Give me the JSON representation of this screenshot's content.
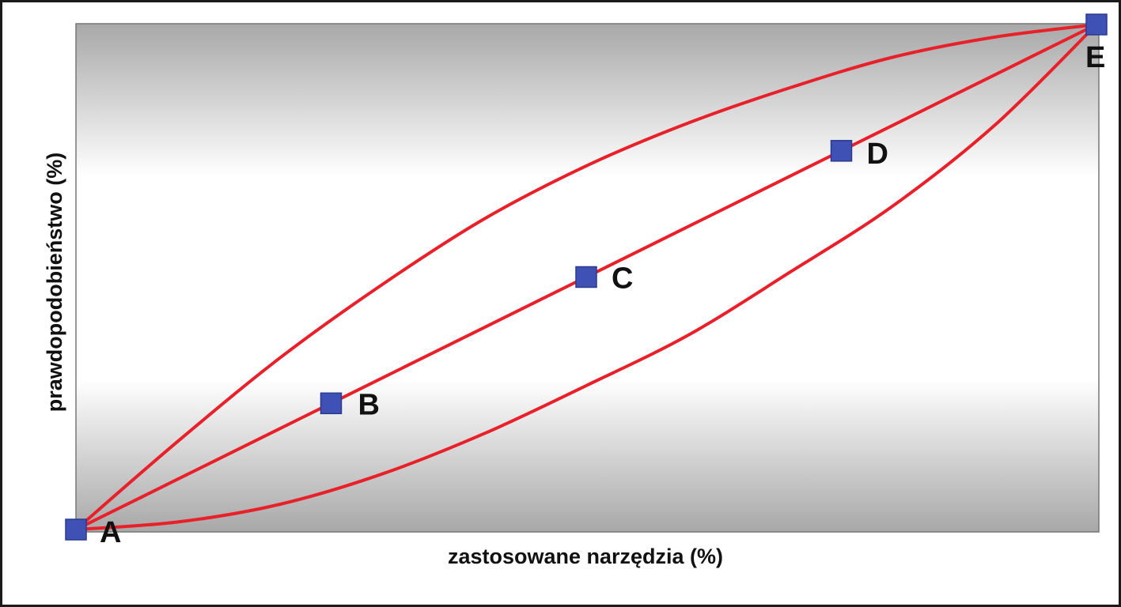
{
  "chart_data": {
    "type": "line",
    "xlabel": "zastosowane narzędzia (%)",
    "ylabel": "prawdopodobieństwo (%)",
    "xlim": [
      0,
      100
    ],
    "ylim": [
      0,
      100
    ],
    "grid": false,
    "legend": "none",
    "colors": {
      "line": "#e8202a",
      "marker": "#3f51b5",
      "marker_edge": "#2a3a8f",
      "plot_bg_edge": "#a8a8a8",
      "plot_bg_center": "#ffffff"
    },
    "points": [
      {
        "label": "A",
        "x": 0,
        "y": 0
      },
      {
        "label": "B",
        "x": 25,
        "y": 25
      },
      {
        "label": "C",
        "x": 50,
        "y": 50
      },
      {
        "label": "D",
        "x": 75,
        "y": 75
      },
      {
        "label": "E",
        "x": 100,
        "y": 100
      }
    ],
    "series": [
      {
        "x": [
          0,
          10,
          20,
          30,
          40,
          50,
          60,
          70,
          80,
          90,
          100
        ],
        "y": [
          0,
          17.5,
          34,
          48.5,
          61.5,
          72,
          80.5,
          87.5,
          93.5,
          97.5,
          100
        ]
      },
      {
        "x": [
          0,
          10,
          20,
          30,
          40,
          50,
          60,
          70,
          80,
          90,
          100
        ],
        "y": [
          0,
          10,
          20,
          30,
          40,
          50,
          60,
          70,
          80,
          90,
          100
        ]
      },
      {
        "x": [
          0,
          10,
          20,
          30,
          40,
          50,
          60,
          70,
          80,
          90,
          100
        ],
        "y": [
          0,
          1.5,
          5,
          11,
          19,
          28.5,
          38.5,
          51,
          64,
          80,
          100
        ]
      }
    ]
  }
}
